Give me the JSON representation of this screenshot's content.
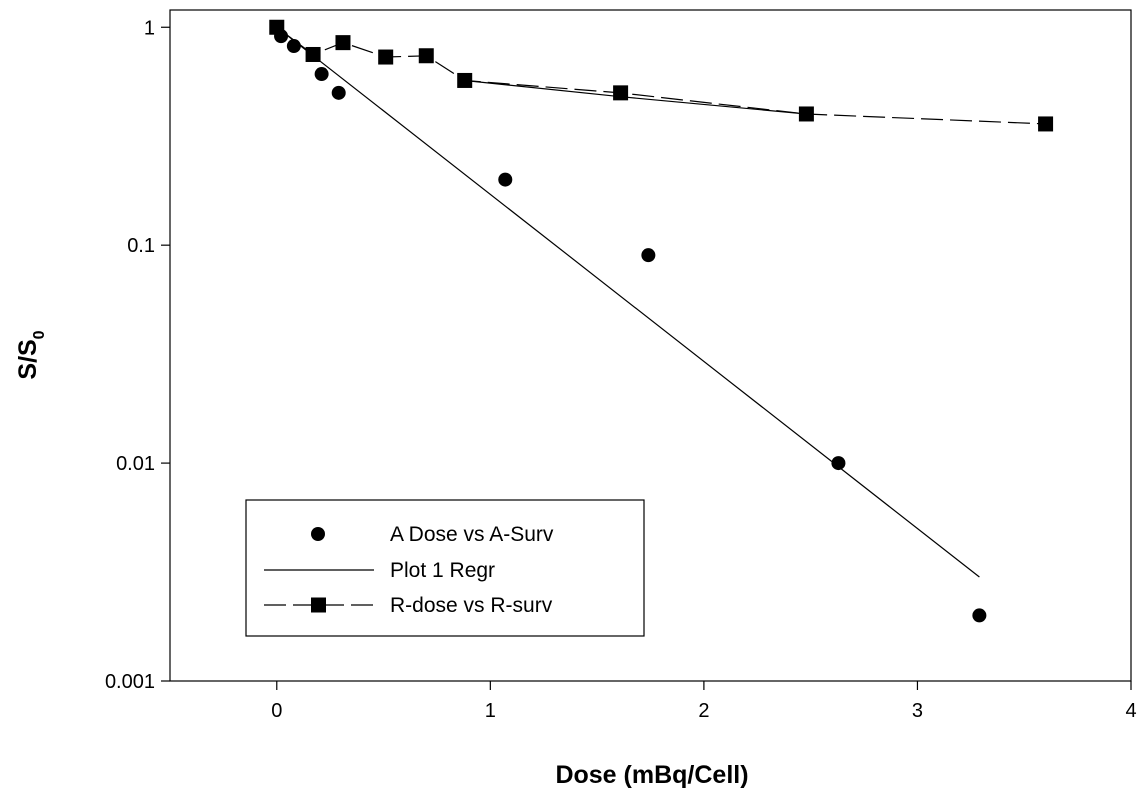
{
  "chart_data": {
    "type": "scatter",
    "title": "",
    "xlabel": "Dose (mBq/Cell)",
    "ylabel": {
      "main": "S/S",
      "subscript": "0"
    },
    "xlim": [
      -0.5,
      4
    ],
    "ylim": [
      0.001,
      1.2
    ],
    "yscale": "log",
    "x_ticks": [
      0,
      1,
      2,
      3,
      4
    ],
    "x_tick_labels": [
      "0",
      "1",
      "2",
      "3",
      "4"
    ],
    "y_ticks": [
      0.001,
      0.01,
      0.1,
      1
    ],
    "y_tick_labels": [
      "0.001",
      "0.01",
      "0.1",
      "1"
    ],
    "grid": false,
    "legend_position": "bottom-left",
    "series": [
      {
        "name": "A Dose vs A-Surv",
        "style": "markers",
        "marker": "circle",
        "x": [
          0.0,
          0.02,
          0.08,
          0.21,
          0.29,
          1.07,
          1.74,
          2.63,
          3.29
        ],
        "y": [
          1.0,
          0.91,
          0.82,
          0.61,
          0.5,
          0.2,
          0.09,
          0.01,
          0.002
        ]
      },
      {
        "name": "Plot 1 Regr",
        "style": "line",
        "x": [
          0.0,
          3.29
        ],
        "y": [
          1.0,
          0.003
        ]
      },
      {
        "name": "R-dose vs R-surv",
        "style": "dashed-line-markers",
        "marker": "square",
        "x": [
          0.0,
          0.17,
          0.31,
          0.51,
          0.7,
          0.88,
          1.61,
          2.48,
          3.6
        ],
        "y": [
          1.0,
          0.75,
          0.85,
          0.73,
          0.74,
          0.57,
          0.5,
          0.4,
          0.36
        ]
      }
    ],
    "extra_lines": [
      {
        "style": "solid",
        "x": [
          0.88,
          1.61,
          2.48
        ],
        "y": [
          0.57,
          0.48,
          0.4
        ]
      }
    ]
  }
}
